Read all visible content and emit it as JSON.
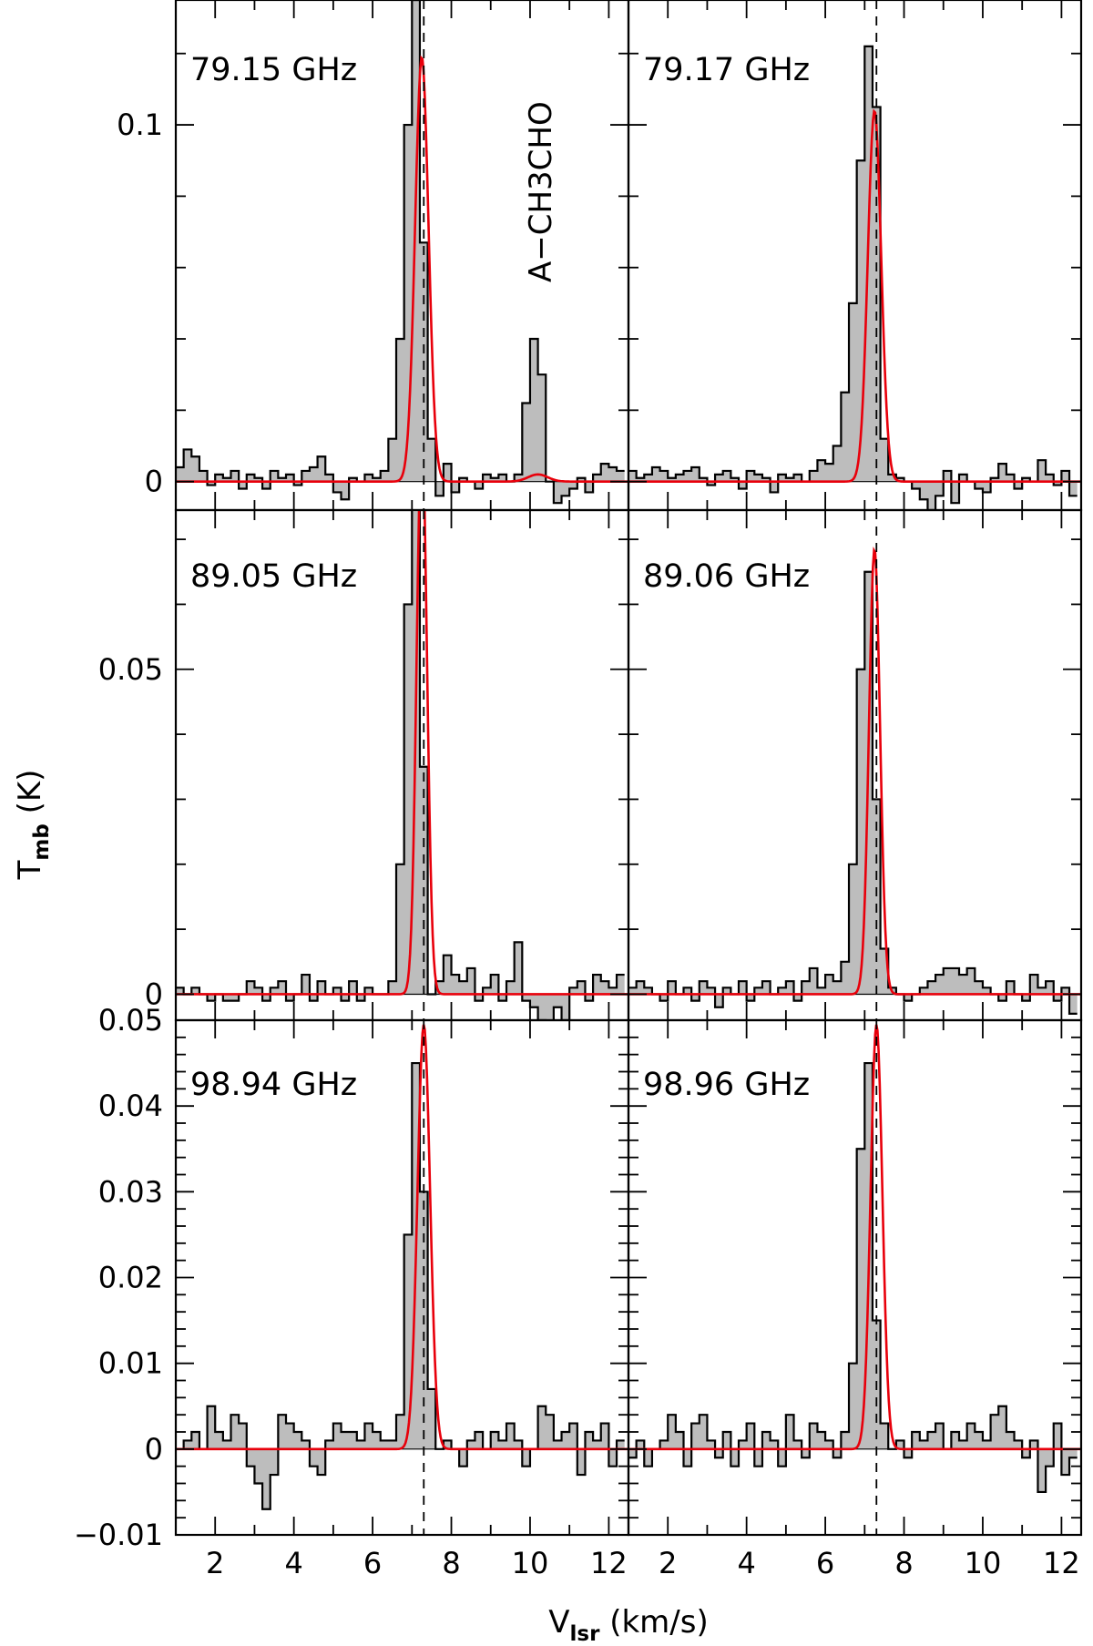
{
  "figure": {
    "ylabel_main": "T",
    "ylabel_sub": "mb",
    "ylabel_unit": " (K)",
    "xlabel_main": "V",
    "xlabel_sub": "lsr",
    "xlabel_unit": " (km/s)"
  },
  "chart_data": [
    {
      "type": "line",
      "panel": "row1-left",
      "label": "79.15 GHz",
      "annotation": "A−CH3CHO",
      "xlim": [
        1,
        12.5
      ],
      "ylim": [
        -0.008,
        0.135
      ],
      "yticks": [
        0,
        0.1
      ],
      "ytick_labels": [
        "0",
        "0.1"
      ],
      "xticks": [
        2,
        4,
        6,
        8,
        10,
        12
      ],
      "xtick_labels": [],
      "vline": 7.3,
      "spectrum": {
        "x": [
          1.1,
          1.3,
          1.5,
          1.7,
          1.9,
          2.1,
          2.3,
          2.5,
          2.7,
          2.9,
          3.1,
          3.3,
          3.5,
          3.7,
          3.9,
          4.1,
          4.3,
          4.5,
          4.7,
          4.9,
          5.1,
          5.3,
          5.5,
          5.7,
          5.9,
          6.1,
          6.3,
          6.5,
          6.7,
          6.9,
          7.1,
          7.3,
          7.5,
          7.7,
          7.9,
          8.1,
          8.3,
          8.5,
          8.7,
          8.9,
          9.1,
          9.3,
          9.5,
          9.7,
          9.9,
          10.1,
          10.3,
          10.5,
          10.7,
          10.9,
          11.1,
          11.3,
          11.5,
          11.7,
          11.9,
          12.1,
          12.3
        ],
        "y": [
          0.004,
          0.009,
          0.007,
          0.003,
          -0.001,
          0.002,
          0.001,
          0.003,
          -0.002,
          0.002,
          0.001,
          -0.002,
          0.003,
          0.001,
          0.002,
          -0.001,
          0.003,
          0.004,
          0.007,
          0.002,
          -0.003,
          -0.005,
          0.001,
          0.0,
          0.002,
          0.001,
          0.003,
          0.012,
          0.04,
          0.1,
          0.135,
          0.067,
          0.012,
          -0.004,
          0.005,
          -0.003,
          0.001,
          0.0,
          -0.002,
          0.002,
          0.001,
          0.002,
          0.0,
          0.002,
          0.022,
          0.04,
          0.03,
          0.0,
          -0.006,
          -0.004,
          -0.002,
          0.001,
          -0.003,
          0.002,
          0.005,
          0.004,
          0.003
        ]
      },
      "model": {
        "center": 7.25,
        "amplitude": 0.119,
        "sigma": 0.17,
        "secondary": {
          "center": 10.2,
          "amplitude": 0.002,
          "sigma": 0.25
        }
      }
    },
    {
      "type": "line",
      "panel": "row1-right",
      "label": "79.17 GHz",
      "xlim": [
        1,
        12.5
      ],
      "ylim": [
        -0.008,
        0.135
      ],
      "yticks": [
        0,
        0.1
      ],
      "ytick_labels": [],
      "xticks": [
        2,
        4,
        6,
        8,
        10,
        12
      ],
      "xtick_labels": [],
      "vline": 7.3,
      "spectrum": {
        "x": [
          1.1,
          1.3,
          1.5,
          1.7,
          1.9,
          2.1,
          2.3,
          2.5,
          2.7,
          2.9,
          3.1,
          3.3,
          3.5,
          3.7,
          3.9,
          4.1,
          4.3,
          4.5,
          4.7,
          4.9,
          5.1,
          5.3,
          5.5,
          5.7,
          5.9,
          6.1,
          6.3,
          6.5,
          6.7,
          6.9,
          7.1,
          7.3,
          7.5,
          7.7,
          7.9,
          8.1,
          8.3,
          8.5,
          8.7,
          8.9,
          9.1,
          9.3,
          9.5,
          9.7,
          9.9,
          10.1,
          10.3,
          10.5,
          10.7,
          10.9,
          11.1,
          11.3,
          11.5,
          11.7,
          11.9,
          12.1,
          12.3
        ],
        "y": [
          0.003,
          0.001,
          0.002,
          0.004,
          0.003,
          0.001,
          0.002,
          0.003,
          0.004,
          0.001,
          -0.001,
          0.002,
          0.003,
          0.001,
          -0.002,
          0.003,
          0.002,
          0.001,
          -0.003,
          0.002,
          0.001,
          0.002,
          0.0,
          0.003,
          0.006,
          0.005,
          0.01,
          0.025,
          0.05,
          0.09,
          0.122,
          0.105,
          0.012,
          0.002,
          0.001,
          0.0,
          -0.002,
          -0.005,
          -0.008,
          -0.004,
          0.003,
          -0.006,
          0.002,
          0.0,
          -0.002,
          -0.003,
          0.001,
          0.005,
          0.002,
          -0.002,
          0.001,
          0.0,
          0.006,
          0.002,
          -0.001,
          0.003,
          -0.004
        ]
      },
      "model": {
        "center": 7.25,
        "amplitude": 0.104,
        "sigma": 0.17
      }
    },
    {
      "type": "line",
      "panel": "row2-left",
      "label": "89.05 GHz",
      "xlim": [
        1,
        12.5
      ],
      "ylim": [
        -0.004,
        0.0745
      ],
      "yticks": [
        0,
        0.05
      ],
      "ytick_labels": [
        "0",
        "0.05"
      ],
      "xticks": [
        2,
        4,
        6,
        8,
        10,
        12
      ],
      "xtick_labels": [],
      "vline": 7.3,
      "spectrum": {
        "x": [
          1.1,
          1.3,
          1.5,
          1.7,
          1.9,
          2.1,
          2.3,
          2.5,
          2.7,
          2.9,
          3.1,
          3.3,
          3.5,
          3.7,
          3.9,
          4.1,
          4.3,
          4.5,
          4.7,
          4.9,
          5.1,
          5.3,
          5.5,
          5.7,
          5.9,
          6.1,
          6.3,
          6.5,
          6.7,
          6.9,
          7.1,
          7.3,
          7.5,
          7.7,
          7.9,
          8.1,
          8.3,
          8.5,
          8.7,
          8.9,
          9.1,
          9.3,
          9.5,
          9.7,
          9.9,
          10.1,
          10.3,
          10.5,
          10.7,
          10.9,
          11.1,
          11.3,
          11.5,
          11.7,
          11.9,
          12.1,
          12.3
        ],
        "y": [
          0.001,
          0.0,
          0.001,
          0.0,
          -0.001,
          0.0,
          -0.001,
          -0.001,
          0.0,
          0.002,
          0.001,
          -0.001,
          0.001,
          0.002,
          -0.001,
          0.0,
          0.003,
          -0.001,
          0.002,
          0.0,
          0.001,
          -0.001,
          0.002,
          -0.001,
          0.001,
          0.0,
          0.0,
          0.002,
          0.02,
          0.06,
          0.086,
          0.035,
          0.0,
          0.002,
          0.006,
          0.003,
          0.002,
          0.004,
          -0.001,
          0.001,
          0.003,
          -0.001,
          0.002,
          0.008,
          -0.001,
          -0.002,
          -0.004,
          -0.006,
          -0.002,
          -0.004,
          0.001,
          0.002,
          -0.001,
          0.003,
          0.002,
          0.001,
          0.003
        ]
      },
      "model": {
        "center": 7.25,
        "amplitude": 0.0867,
        "sigma": 0.13
      }
    },
    {
      "type": "line",
      "panel": "row2-right",
      "label": "89.06 GHz",
      "xlim": [
        1,
        12.5
      ],
      "ylim": [
        -0.004,
        0.0745
      ],
      "yticks": [
        0,
        0.05
      ],
      "ytick_labels": [],
      "xticks": [
        2,
        4,
        6,
        8,
        10,
        12
      ],
      "xtick_labels": [],
      "vline": 7.3,
      "spectrum": {
        "x": [
          1.1,
          1.3,
          1.5,
          1.7,
          1.9,
          2.1,
          2.3,
          2.5,
          2.7,
          2.9,
          3.1,
          3.3,
          3.5,
          3.7,
          3.9,
          4.1,
          4.3,
          4.5,
          4.7,
          4.9,
          5.1,
          5.3,
          5.5,
          5.7,
          5.9,
          6.1,
          6.3,
          6.5,
          6.7,
          6.9,
          7.1,
          7.3,
          7.5,
          7.7,
          7.9,
          8.1,
          8.3,
          8.5,
          8.7,
          8.9,
          9.1,
          9.3,
          9.5,
          9.7,
          9.9,
          10.1,
          10.3,
          10.5,
          10.7,
          10.9,
          11.1,
          11.3,
          11.5,
          11.7,
          11.9,
          12.1,
          12.3
        ],
        "y": [
          0.001,
          0.002,
          0.001,
          0.0,
          -0.001,
          0.002,
          0.0,
          0.001,
          -0.001,
          0.002,
          0.001,
          -0.002,
          0.001,
          0.0,
          0.002,
          -0.001,
          0.001,
          0.002,
          0.0,
          0.001,
          0.002,
          -0.001,
          0.002,
          0.004,
          0.001,
          0.003,
          0.002,
          0.005,
          0.02,
          0.05,
          0.065,
          0.03,
          0.007,
          0.001,
          0.0,
          -0.001,
          0.0,
          0.001,
          0.002,
          0.003,
          0.004,
          0.004,
          0.003,
          0.004,
          0.002,
          0.001,
          0.0,
          -0.001,
          0.002,
          0.0,
          -0.001,
          0.003,
          0.001,
          0.002,
          -0.001,
          0.001,
          -0.003
        ]
      },
      "model": {
        "center": 7.25,
        "amplitude": 0.0685,
        "sigma": 0.14
      }
    },
    {
      "type": "line",
      "panel": "row3-left",
      "label": "98.94 GHz",
      "xlim": [
        1,
        12.5
      ],
      "ylim": [
        -0.01,
        0.05
      ],
      "yticks": [
        -0.01,
        0,
        0.01,
        0.02,
        0.03,
        0.04,
        0.05
      ],
      "ytick_labels": [
        "−0.01",
        "0",
        "0.01",
        "0.02",
        "0.03",
        "0.04",
        "0.05"
      ],
      "xticks": [
        2,
        4,
        6,
        8,
        10,
        12
      ],
      "xtick_labels": [
        "2",
        "4",
        "6",
        "8",
        "10",
        "12"
      ],
      "vline": 7.3,
      "spectrum": {
        "x": [
          1.1,
          1.3,
          1.5,
          1.7,
          1.9,
          2.1,
          2.3,
          2.5,
          2.7,
          2.9,
          3.1,
          3.3,
          3.5,
          3.7,
          3.9,
          4.1,
          4.3,
          4.5,
          4.7,
          4.9,
          5.1,
          5.3,
          5.5,
          5.7,
          5.9,
          6.1,
          6.3,
          6.5,
          6.7,
          6.9,
          7.1,
          7.3,
          7.5,
          7.7,
          7.9,
          8.1,
          8.3,
          8.5,
          8.7,
          8.9,
          9.1,
          9.3,
          9.5,
          9.7,
          9.9,
          10.1,
          10.3,
          10.5,
          10.7,
          10.9,
          11.1,
          11.3,
          11.5,
          11.7,
          11.9,
          12.1,
          12.3
        ],
        "y": [
          0.0,
          0.001,
          0.002,
          0.0,
          0.005,
          0.002,
          0.001,
          0.004,
          0.003,
          -0.002,
          -0.004,
          -0.007,
          -0.003,
          0.004,
          0.003,
          0.002,
          0.001,
          -0.002,
          -0.003,
          0.001,
          0.003,
          0.002,
          0.002,
          0.001,
          0.003,
          0.002,
          0.001,
          0.001,
          0.004,
          0.025,
          0.045,
          0.03,
          0.007,
          0.0,
          0.001,
          0.0,
          -0.002,
          0.001,
          0.002,
          0.0,
          0.002,
          0.001,
          0.003,
          0.001,
          -0.002,
          0.0,
          0.005,
          0.004,
          0.001,
          0.002,
          0.003,
          -0.003,
          0.002,
          0.001,
          0.003,
          -0.002,
          0.001
        ]
      },
      "model": {
        "center": 7.3,
        "amplitude": 0.0495,
        "sigma": 0.16
      }
    },
    {
      "type": "line",
      "panel": "row3-right",
      "label": "98.96 GHz",
      "xlim": [
        1,
        12.5
      ],
      "ylim": [
        -0.01,
        0.05
      ],
      "yticks": [
        -0.01,
        0,
        0.01,
        0.02,
        0.03,
        0.04,
        0.05
      ],
      "ytick_labels": [],
      "xticks": [
        2,
        4,
        6,
        8,
        10,
        12
      ],
      "xtick_labels": [
        "2",
        "4",
        "6",
        "8",
        "10",
        "12"
      ],
      "vline": 7.3,
      "spectrum": {
        "x": [
          1.1,
          1.3,
          1.5,
          1.7,
          1.9,
          2.1,
          2.3,
          2.5,
          2.7,
          2.9,
          3.1,
          3.3,
          3.5,
          3.7,
          3.9,
          4.1,
          4.3,
          4.5,
          4.7,
          4.9,
          5.1,
          5.3,
          5.5,
          5.7,
          5.9,
          6.1,
          6.3,
          6.5,
          6.7,
          6.9,
          7.1,
          7.3,
          7.5,
          7.7,
          7.9,
          8.1,
          8.3,
          8.5,
          8.7,
          8.9,
          9.1,
          9.3,
          9.5,
          9.7,
          9.9,
          10.1,
          10.3,
          10.5,
          10.7,
          10.9,
          11.1,
          11.3,
          11.5,
          11.7,
          11.9,
          12.1,
          12.3
        ],
        "y": [
          -0.001,
          0.001,
          -0.002,
          0.0,
          0.001,
          0.004,
          0.002,
          -0.002,
          0.003,
          0.004,
          0.001,
          -0.001,
          0.002,
          -0.002,
          0.001,
          0.003,
          -0.002,
          0.002,
          0.001,
          -0.002,
          0.004,
          0.001,
          -0.001,
          0.003,
          0.002,
          0.001,
          -0.001,
          0.002,
          0.01,
          0.035,
          0.045,
          0.015,
          0.003,
          0.0,
          0.001,
          -0.001,
          0.002,
          0.001,
          0.002,
          0.003,
          0.0,
          0.002,
          0.001,
          0.003,
          0.002,
          0.001,
          0.004,
          0.005,
          0.002,
          0.001,
          -0.001,
          0.001,
          -0.005,
          -0.002,
          0.003,
          -0.003,
          -0.001
        ]
      },
      "model": {
        "center": 7.3,
        "amplitude": 0.0495,
        "sigma": 0.15
      }
    }
  ]
}
